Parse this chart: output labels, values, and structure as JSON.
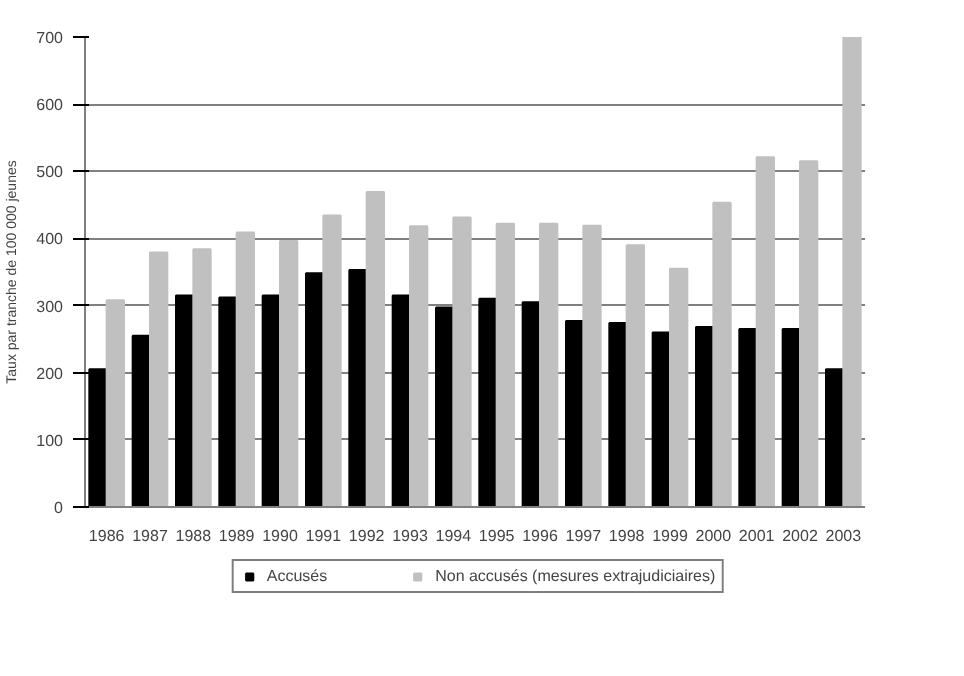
{
  "chart_data": {
    "type": "bar",
    "ylabel": "Taux par tranche de 100 000 jeunes",
    "categories": [
      "1986",
      "1987",
      "1988",
      "1989",
      "1990",
      "1991",
      "1992",
      "1993",
      "1994",
      "1995",
      "1996",
      "1997",
      "1998",
      "1999",
      "2000",
      "2001",
      "2002",
      "2003"
    ],
    "series": [
      {
        "name": "Accusés",
        "color": "#000000",
        "values": [
          205,
          255,
          315,
          312,
          315,
          348,
          353,
          315,
          297,
          310,
          305,
          277,
          274,
          260,
          268,
          265,
          265,
          205
        ]
      },
      {
        "name": "Non accusés (mesures extrajudiciaires)",
        "color": "#c0c0c0",
        "values": [
          308,
          379,
          384,
          409,
          396,
          434,
          469,
          418,
          431,
          422,
          422,
          419,
          390,
          355,
          453,
          521,
          515,
          700
        ]
      }
    ],
    "ylim": [
      0,
      700
    ],
    "yticks": [
      0,
      100,
      200,
      300,
      400,
      500,
      600,
      700
    ],
    "grid": "y",
    "legend": "bottom"
  }
}
